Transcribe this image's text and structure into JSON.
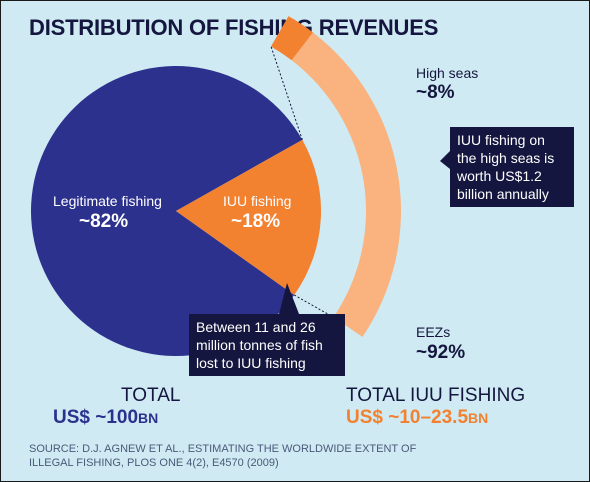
{
  "title": "DISTRIBUTION OF FISHING REVENUES",
  "colors": {
    "background": "#cfeaf2",
    "legitimate": "#2d318e",
    "iuu": "#f28130",
    "eez": "#fab27f",
    "dark_navy": "#15163f"
  },
  "chart_data": [
    {
      "type": "pie",
      "title": "",
      "slices": [
        {
          "label": "Legitimate fishing",
          "value": 82,
          "value_text": "~82%"
        },
        {
          "label": "IUU fishing",
          "value": 18,
          "value_text": "~18%"
        }
      ],
      "total_label": "TOTAL",
      "total_value": "US$ ~100",
      "total_unit": "BN"
    },
    {
      "type": "bar",
      "title": "",
      "slices": [
        {
          "label": "High seas",
          "value": 8,
          "value_text": "~8%"
        },
        {
          "label": "EEZs",
          "value": 92,
          "value_text": "~92%"
        }
      ],
      "total_label": "TOTAL IUU FISHING",
      "total_value": "US$ ~10–23.5",
      "total_unit": "BN"
    }
  ],
  "callouts": {
    "high_seas": "IUU fishing on the high seas is worth US$1.2 billion annually",
    "fish_lost": "Between 11 and 26 million tonnes of fish lost to IUU fishing"
  },
  "source": "SOURCE: D.J. AGNEW ET AL., ESTIMATING THE WORLDWIDE EXTENT OF ILLEGAL FISHING, PLOS ONE 4(2), E4570 (2009)"
}
